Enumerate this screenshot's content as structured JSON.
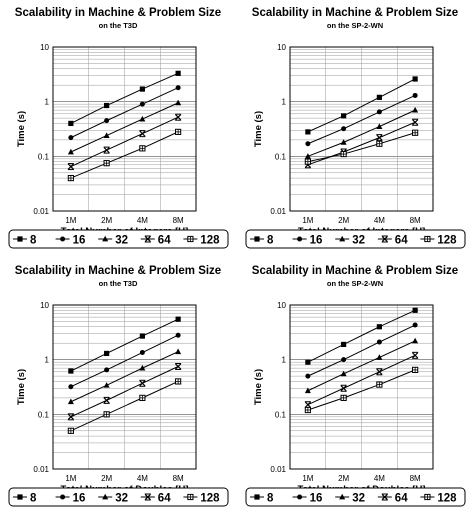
{
  "chart_data": [
    {
      "type": "line",
      "title": "Scalability in Machine & Problem Size",
      "subtitle": "on the T3D",
      "xlabel": "Total Number of Integers [U]",
      "ylabel": "Time (s)",
      "yscale": "log",
      "ylim": [
        0.01,
        10
      ],
      "yticks": [
        "10",
        "1",
        "0.1",
        "0.01"
      ],
      "grid": true,
      "legend_position": "bottom",
      "categories": [
        "1M",
        "2M",
        "4M",
        "8M"
      ],
      "series": [
        {
          "name": "8",
          "marker": "square",
          "values": [
            0.4,
            0.85,
            1.7,
            3.3
          ]
        },
        {
          "name": "16",
          "marker": "circle",
          "values": [
            0.22,
            0.45,
            0.9,
            1.8
          ]
        },
        {
          "name": "32",
          "marker": "triangle",
          "values": [
            0.12,
            0.24,
            0.48,
            0.95
          ]
        },
        {
          "name": "64",
          "marker": "x-bar",
          "values": [
            0.065,
            0.13,
            0.26,
            0.52
          ]
        },
        {
          "name": "128",
          "marker": "open-square",
          "values": [
            0.04,
            0.075,
            0.14,
            0.28
          ]
        }
      ]
    },
    {
      "type": "line",
      "title": "Scalability in Machine & Problem Size",
      "subtitle": "on the SP-2-WN",
      "xlabel": "Total Number of Integers [U]",
      "ylabel": "Time (s)",
      "yscale": "log",
      "ylim": [
        0.01,
        10
      ],
      "yticks": [
        "10",
        "1",
        "0.1",
        "0.01"
      ],
      "grid": true,
      "legend_position": "bottom",
      "categories": [
        "1M",
        "2M",
        "4M",
        "8M"
      ],
      "series": [
        {
          "name": "8",
          "marker": "square",
          "values": [
            0.28,
            0.55,
            1.2,
            2.6
          ]
        },
        {
          "name": "16",
          "marker": "circle",
          "values": [
            0.17,
            0.32,
            0.65,
            1.3
          ]
        },
        {
          "name": "32",
          "marker": "triangle",
          "values": [
            0.1,
            0.18,
            0.35,
            0.7
          ]
        },
        {
          "name": "64",
          "marker": "x-bar",
          "values": [
            0.07,
            0.12,
            0.22,
            0.42
          ]
        },
        {
          "name": "128",
          "marker": "open-square",
          "values": [
            0.08,
            0.11,
            0.17,
            0.27
          ]
        }
      ]
    },
    {
      "type": "line",
      "title": "Scalability in Machine & Problem Size",
      "subtitle": "on the T3D",
      "xlabel": "Total Number of Doubles [U]",
      "ylabel": "Time (s)",
      "yscale": "log",
      "ylim": [
        0.01,
        10
      ],
      "yticks": [
        "10",
        "1",
        "0.1",
        "0.01"
      ],
      "grid": true,
      "legend_position": "bottom",
      "categories": [
        "1M",
        "2M",
        "4M",
        "8M"
      ],
      "series": [
        {
          "name": "8",
          "marker": "square",
          "values": [
            0.62,
            1.3,
            2.7,
            5.5
          ]
        },
        {
          "name": "16",
          "marker": "circle",
          "values": [
            0.32,
            0.65,
            1.35,
            2.8
          ]
        },
        {
          "name": "32",
          "marker": "triangle",
          "values": [
            0.17,
            0.34,
            0.7,
            1.4
          ]
        },
        {
          "name": "64",
          "marker": "x-bar",
          "values": [
            0.09,
            0.18,
            0.37,
            0.75
          ]
        },
        {
          "name": "128",
          "marker": "open-square",
          "values": [
            0.05,
            0.1,
            0.2,
            0.4
          ]
        }
      ]
    },
    {
      "type": "line",
      "title": "Scalability in Machine & Problem Size",
      "subtitle": "on the SP-2-WN",
      "xlabel": "Total Number of Doubles [U]",
      "ylabel": "Time (s)",
      "yscale": "log",
      "ylim": [
        0.01,
        10
      ],
      "yticks": [
        "10",
        "1",
        "0.1",
        "0.01"
      ],
      "grid": true,
      "legend_position": "bottom",
      "categories": [
        "1M",
        "2M",
        "4M",
        "8M"
      ],
      "series": [
        {
          "name": "8",
          "marker": "square",
          "values": [
            0.9,
            1.9,
            4.0,
            8.0
          ]
        },
        {
          "name": "16",
          "marker": "circle",
          "values": [
            0.5,
            1.0,
            2.1,
            4.3
          ]
        },
        {
          "name": "32",
          "marker": "triangle",
          "values": [
            0.27,
            0.55,
            1.1,
            2.2
          ]
        },
        {
          "name": "64",
          "marker": "x-bar",
          "values": [
            0.15,
            0.3,
            0.6,
            1.2
          ]
        },
        {
          "name": "128",
          "marker": "open-square",
          "values": [
            0.12,
            0.2,
            0.35,
            0.65
          ]
        }
      ]
    }
  ]
}
